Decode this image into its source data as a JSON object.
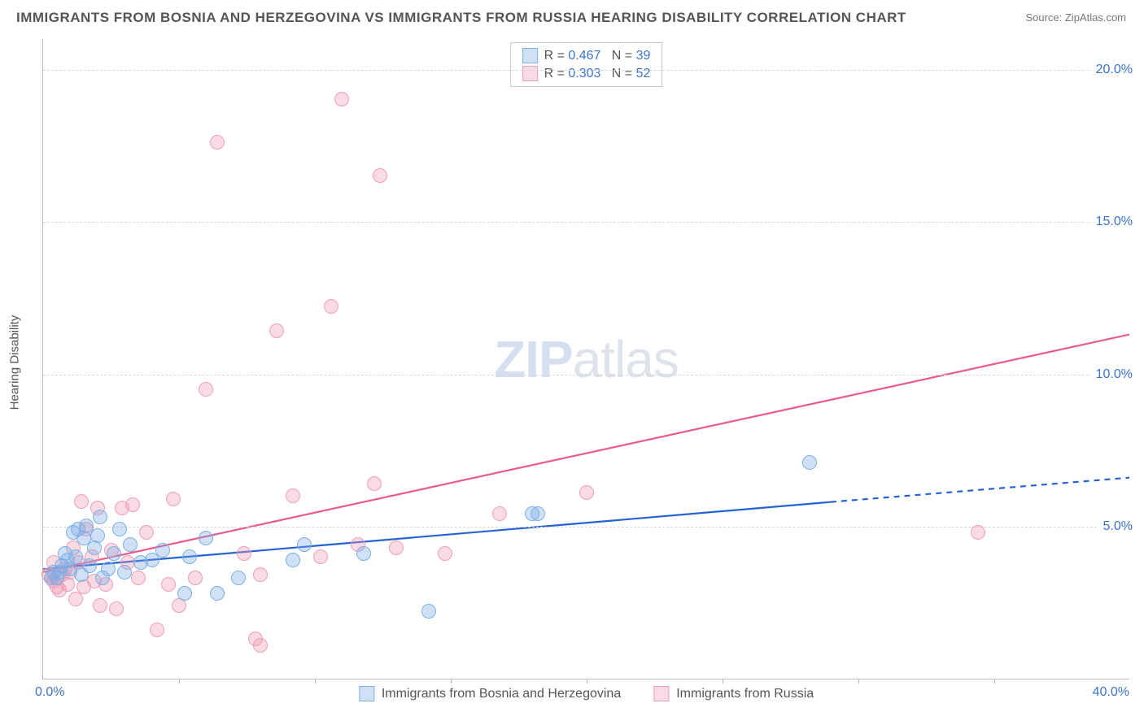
{
  "title": "IMMIGRANTS FROM BOSNIA AND HERZEGOVINA VS IMMIGRANTS FROM RUSSIA HEARING DISABILITY CORRELATION CHART",
  "source": "Source: ZipAtlas.com",
  "watermark_bold": "ZIP",
  "watermark_thin": "atlas",
  "chart": {
    "type": "scatter",
    "background_color": "#ffffff",
    "grid_dash_color": "#d8d8d8",
    "axis_color": "#bcbcbc",
    "xlim": [
      0,
      40
    ],
    "ylim": [
      0,
      21
    ],
    "x_origin_label": "0.0%",
    "x_max_label": "40.0%",
    "y_ticks": [
      {
        "v": 5,
        "label": "5.0%"
      },
      {
        "v": 10,
        "label": "10.0%"
      },
      {
        "v": 15,
        "label": "15.0%"
      },
      {
        "v": 20,
        "label": "20.0%"
      }
    ],
    "x_tick_marks": [
      5,
      10,
      15,
      20,
      25,
      30,
      35
    ],
    "ylabel": "Hearing Disability",
    "ylabel_fontsize": 15,
    "tick_fontcolor": "#3b74c9",
    "point_radius": 9,
    "point_border_width": 1.2,
    "series": {
      "bosnia": {
        "label": "Immigrants from Bosnia and Herzegovina",
        "fill": "rgba(120,170,225,0.35)",
        "stroke": "#7bb0e6",
        "points": [
          [
            0.4,
            3.5
          ],
          [
            0.5,
            3.3
          ],
          [
            0.7,
            3.7
          ],
          [
            0.8,
            4.1
          ],
          [
            1.0,
            3.6
          ],
          [
            1.1,
            4.8
          ],
          [
            1.2,
            4.0
          ],
          [
            1.3,
            4.9
          ],
          [
            1.5,
            4.6
          ],
          [
            1.6,
            5.0
          ],
          [
            1.7,
            3.7
          ],
          [
            1.9,
            4.3
          ],
          [
            2.0,
            4.7
          ],
          [
            2.1,
            5.3
          ],
          [
            2.2,
            3.3
          ],
          [
            2.4,
            3.6
          ],
          [
            2.6,
            4.1
          ],
          [
            2.8,
            4.9
          ],
          [
            3.0,
            3.5
          ],
          [
            3.2,
            4.4
          ],
          [
            3.6,
            3.8
          ],
          [
            4.0,
            3.9
          ],
          [
            4.4,
            4.2
          ],
          [
            5.2,
            2.8
          ],
          [
            5.4,
            4.0
          ],
          [
            6.0,
            4.6
          ],
          [
            6.4,
            2.8
          ],
          [
            7.2,
            3.3
          ],
          [
            9.2,
            3.9
          ],
          [
            9.6,
            4.4
          ],
          [
            11.8,
            4.1
          ],
          [
            14.2,
            2.2
          ],
          [
            18.0,
            5.4
          ],
          [
            18.2,
            5.4
          ],
          [
            28.2,
            7.1
          ],
          [
            0.3,
            3.3
          ],
          [
            0.6,
            3.5
          ],
          [
            0.9,
            3.9
          ],
          [
            1.4,
            3.4
          ]
        ]
      },
      "russia": {
        "label": "Immigrants from Russia",
        "fill": "rgba(240,150,175,0.35)",
        "stroke": "#eca0b5",
        "points": [
          [
            0.3,
            3.3
          ],
          [
            0.4,
            3.8
          ],
          [
            0.5,
            3.0
          ],
          [
            0.6,
            2.9
          ],
          [
            0.7,
            3.4
          ],
          [
            0.8,
            3.6
          ],
          [
            0.9,
            3.1
          ],
          [
            1.0,
            3.5
          ],
          [
            1.1,
            4.3
          ],
          [
            1.2,
            2.6
          ],
          [
            1.3,
            3.8
          ],
          [
            1.4,
            5.8
          ],
          [
            1.5,
            3.0
          ],
          [
            1.6,
            4.9
          ],
          [
            1.8,
            4.0
          ],
          [
            1.9,
            3.2
          ],
          [
            2.0,
            5.6
          ],
          [
            2.1,
            2.4
          ],
          [
            2.3,
            3.1
          ],
          [
            2.5,
            4.2
          ],
          [
            2.7,
            2.3
          ],
          [
            2.9,
            5.6
          ],
          [
            3.1,
            3.8
          ],
          [
            3.3,
            5.7
          ],
          [
            3.5,
            3.3
          ],
          [
            3.8,
            4.8
          ],
          [
            4.2,
            1.6
          ],
          [
            4.6,
            3.1
          ],
          [
            4.8,
            5.9
          ],
          [
            5.0,
            2.4
          ],
          [
            5.6,
            3.3
          ],
          [
            6.0,
            9.5
          ],
          [
            6.4,
            17.6
          ],
          [
            7.4,
            4.1
          ],
          [
            7.8,
            1.3
          ],
          [
            8.0,
            1.1
          ],
          [
            8.0,
            3.4
          ],
          [
            8.6,
            11.4
          ],
          [
            9.2,
            6.0
          ],
          [
            10.2,
            4.0
          ],
          [
            10.6,
            12.2
          ],
          [
            11.0,
            19.0
          ],
          [
            11.6,
            4.4
          ],
          [
            12.2,
            6.4
          ],
          [
            12.4,
            16.5
          ],
          [
            13.0,
            4.3
          ],
          [
            14.8,
            4.1
          ],
          [
            16.8,
            5.4
          ],
          [
            20.0,
            6.1
          ],
          [
            34.4,
            4.8
          ],
          [
            0.2,
            3.4
          ],
          [
            0.4,
            3.2
          ]
        ]
      }
    },
    "trend_lines": {
      "bosnia": {
        "color": "#2563d4",
        "width": 2.2,
        "solid": {
          "x1": 0,
          "y1": 3.6,
          "x2": 29,
          "y2": 5.8
        },
        "dashed": {
          "x1": 29,
          "y1": 5.8,
          "x2": 40,
          "y2": 6.6
        }
      },
      "russia": {
        "color": "#e85a88",
        "width": 2.2,
        "solid": {
          "x1": 0,
          "y1": 3.5,
          "x2": 40,
          "y2": 11.3
        }
      }
    }
  },
  "legend_top": {
    "rows": [
      {
        "swatch_fill": "rgba(120,170,225,0.35)",
        "swatch_stroke": "#7bb0e6",
        "r_label": "R = ",
        "r_val": "0.467",
        "n_label": "N = ",
        "n_val": "39"
      },
      {
        "swatch_fill": "rgba(240,150,175,0.35)",
        "swatch_stroke": "#eca0b5",
        "r_label": "R = ",
        "r_val": "0.303",
        "n_label": "N = ",
        "n_val": "52"
      }
    ]
  },
  "legend_bottom": {
    "items": [
      {
        "swatch_fill": "rgba(120,170,225,0.35)",
        "swatch_stroke": "#7bb0e6",
        "label_key": "chart.series.bosnia.label"
      },
      {
        "swatch_fill": "rgba(240,150,175,0.35)",
        "swatch_stroke": "#eca0b5",
        "label_key": "chart.series.russia.label"
      }
    ]
  }
}
